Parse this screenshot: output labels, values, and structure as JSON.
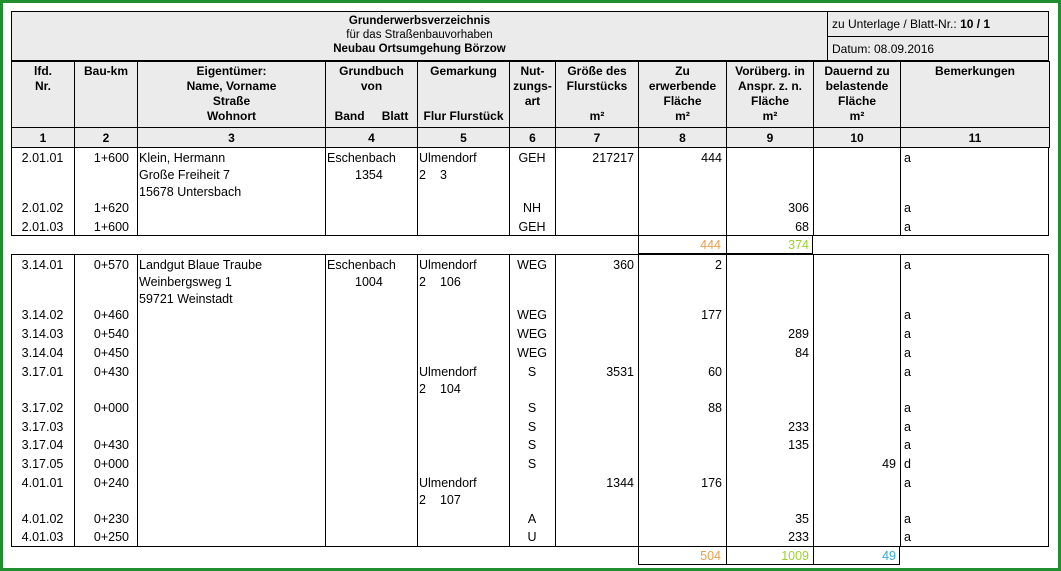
{
  "header": {
    "title": "Grunderwerbsverzeichnis",
    "subtitle": "für das Straßenbauvorhaben",
    "project": "Neubau Ortsumgehung Börzow",
    "ref_label": "zu Unterlage / Blatt-Nr.: ",
    "ref_value": "10 / 1",
    "date": "Datum: 08.09.2016"
  },
  "columns": [
    {
      "label": "lfd.\nNr.",
      "num": "1"
    },
    {
      "label": "Bau-km",
      "num": "2"
    },
    {
      "label": "Eigentümer:\nName, Vorname\nStraße\nWohnort",
      "num": "3"
    },
    {
      "label": "Grundbuch\nvon",
      "sub1": "Band",
      "sub2": "Blatt",
      "num": "4"
    },
    {
      "label": "Gemarkung",
      "sub1": "Flur Flurstück",
      "num": "5"
    },
    {
      "label": "Nut-\nzungs-\nart",
      "num": "6"
    },
    {
      "label": "Größe des\nFlurstücks",
      "unit": "m²",
      "num": "7"
    },
    {
      "label": "Zu\nerwerbende\nFläche\nm²",
      "num": "8"
    },
    {
      "label": "Vorüberg. in\nAnspr. z. n.\nFläche\nm²",
      "num": "9"
    },
    {
      "label": "Dauernd zu\nbelastende\nFläche\nm²",
      "num": "10"
    },
    {
      "label": "Bemerkungen",
      "num": "11"
    }
  ],
  "group1": {
    "owner": [
      "Klein, Hermann",
      "Große Freiheit 7",
      "15678 Untersbach"
    ],
    "grundbuch": [
      "Eschenbach",
      "1354"
    ],
    "gemarkung": [
      "Ulmendorf",
      "2",
      "3"
    ],
    "rows": [
      {
        "nr": "2.01.01",
        "km": "1+600",
        "art": "GEH",
        "size": "217217",
        "c8": "444",
        "c9": "",
        "c10": "",
        "rem": "a"
      },
      {
        "nr": "2.01.02",
        "km": "1+620",
        "art": "NH",
        "size": "",
        "c8": "",
        "c9": "306",
        "c10": "",
        "rem": "a"
      },
      {
        "nr": "2.01.03",
        "km": "1+600",
        "art": "GEH",
        "size": "",
        "c8": "",
        "c9": "68",
        "c10": "",
        "rem": "a"
      }
    ],
    "sum8": "444",
    "sum9": "374"
  },
  "group2": {
    "owner": [
      "Landgut Blaue Traube",
      "Weinbergsweg 1",
      "59721 Weinstadt"
    ],
    "grundbuch": [
      "Eschenbach",
      "1004"
    ],
    "gemarkung_a": [
      "Ulmendorf",
      "2",
      "106"
    ],
    "gemarkung_b": [
      "Ulmendorf",
      "2",
      "104"
    ],
    "gemarkung_c": [
      "Ulmendorf",
      "2",
      "107"
    ],
    "rows": [
      {
        "nr": "3.14.01",
        "km": "0+570",
        "art": "WEG",
        "size": "360",
        "c8": "2",
        "c9": "",
        "c10": "",
        "rem": "a"
      },
      {
        "nr": "3.14.02",
        "km": "0+460",
        "art": "WEG",
        "size": "",
        "c8": "177",
        "c9": "",
        "c10": "",
        "rem": "a"
      },
      {
        "nr": "3.14.03",
        "km": "0+540",
        "art": "WEG",
        "size": "",
        "c8": "",
        "c9": "289",
        "c10": "",
        "rem": "a"
      },
      {
        "nr": "3.14.04",
        "km": "0+450",
        "art": "WEG",
        "size": "",
        "c8": "",
        "c9": "84",
        "c10": "",
        "rem": "a"
      },
      {
        "nr": "3.17.01",
        "km": "0+430",
        "art": "S",
        "size": "3531",
        "c8": "60",
        "c9": "",
        "c10": "",
        "rem": "a"
      },
      {
        "nr": "3.17.02",
        "km": "0+000",
        "art": "S",
        "size": "",
        "c8": "88",
        "c9": "",
        "c10": "",
        "rem": "a"
      },
      {
        "nr": "3.17.03",
        "km": "",
        "art": "S",
        "size": "",
        "c8": "",
        "c9": "233",
        "c10": "",
        "rem": "a"
      },
      {
        "nr": "3.17.04",
        "km": "0+430",
        "art": "S",
        "size": "",
        "c8": "",
        "c9": "135",
        "c10": "",
        "rem": "a"
      },
      {
        "nr": "3.17.05",
        "km": "0+000",
        "art": "S",
        "size": "",
        "c8": "",
        "c9": "",
        "c10": "49",
        "rem": "d"
      },
      {
        "nr": "4.01.01",
        "km": "0+240",
        "art": "",
        "size": "1344",
        "c8": "176",
        "c9": "",
        "c10": "",
        "rem": "a"
      },
      {
        "nr": "4.01.02",
        "km": "0+230",
        "art": "A",
        "size": "",
        "c8": "",
        "c9": "35",
        "c10": "",
        "rem": "a"
      },
      {
        "nr": "4.01.03",
        "km": "0+250",
        "art": "U",
        "size": "",
        "c8": "",
        "c9": "233",
        "c10": "",
        "rem": "a"
      }
    ],
    "sum8": "504",
    "sum9": "1009",
    "sum10": "49"
  },
  "colors": {
    "frame": "#1f8f2f",
    "sum8": "#e8a050",
    "sum9": "#9bd12e",
    "sum10": "#33aadd"
  }
}
